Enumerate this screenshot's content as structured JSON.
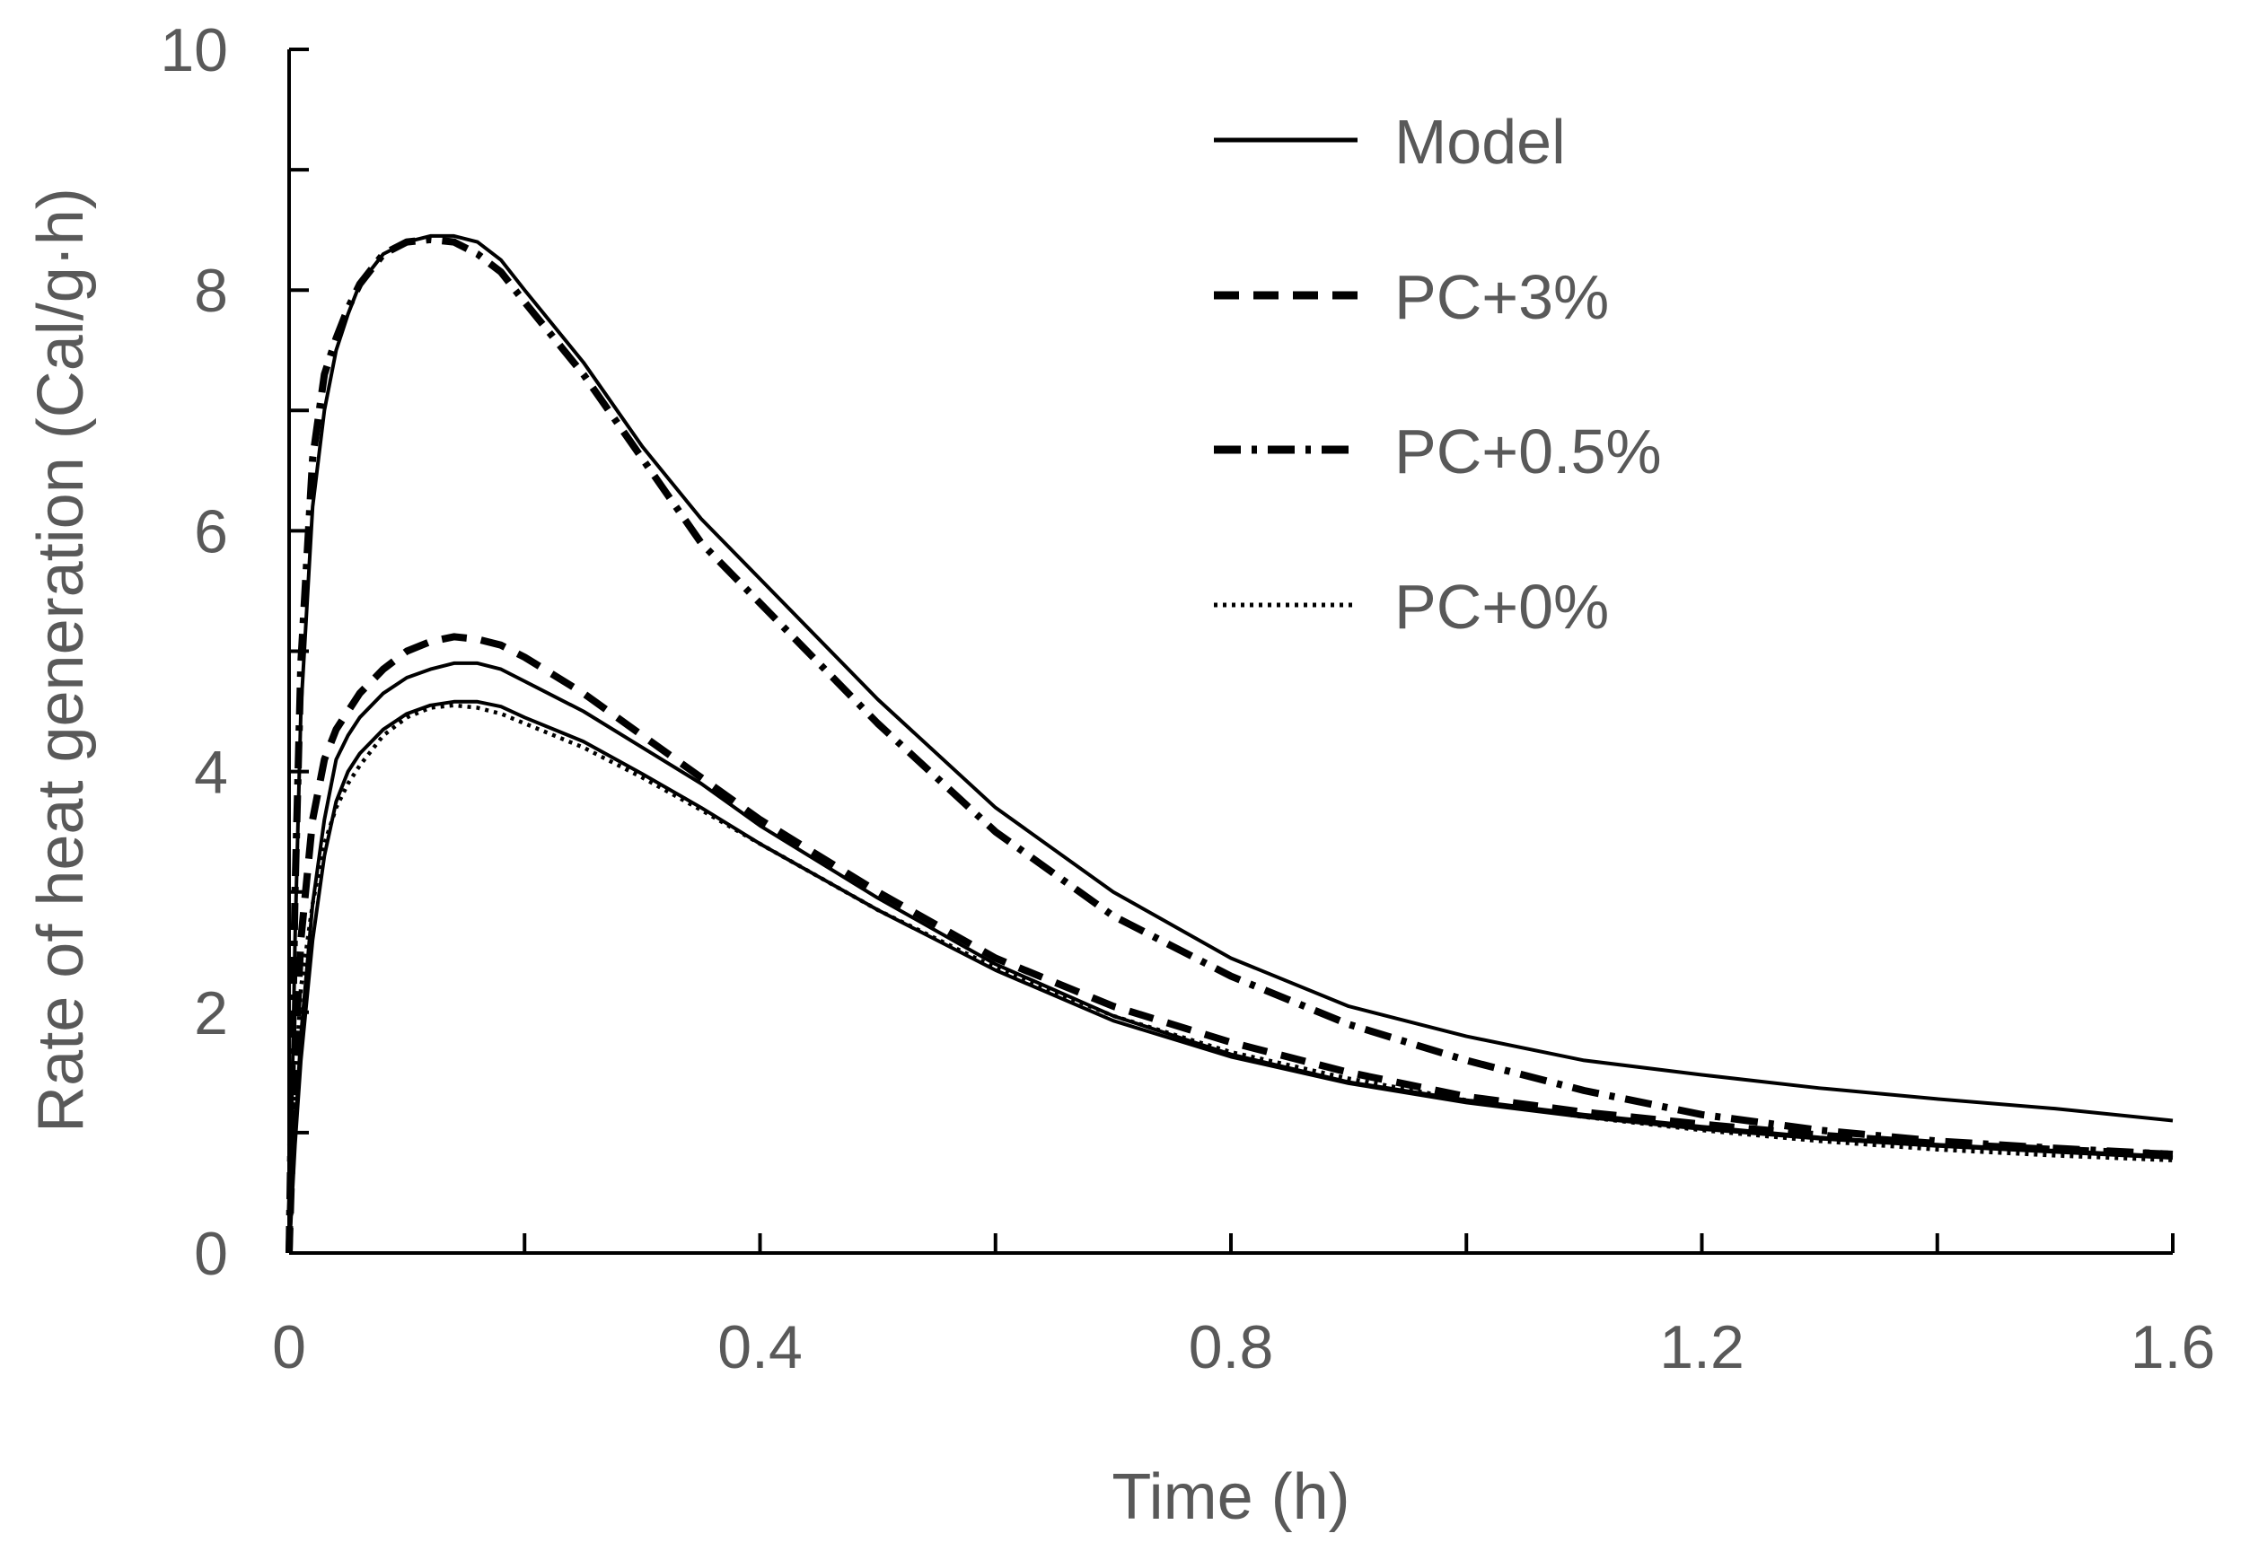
{
  "chart_data": {
    "type": "line",
    "title": "",
    "xlabel": "Time (h)",
    "ylabel": "Rate of heat generation (Cal/g·h)",
    "xlim": [
      0,
      1.6
    ],
    "ylim": [
      0,
      10
    ],
    "x_ticks": [
      0,
      0.4,
      0.8,
      1.2,
      1.6
    ],
    "x_tick_labels": [
      "0",
      "0.4",
      "0.8",
      "1.2",
      "1.6"
    ],
    "x_minor_step": 0.2,
    "y_ticks": [
      0,
      2,
      4,
      6,
      8,
      10
    ],
    "y_tick_labels": [
      "0",
      "2",
      "4",
      "6",
      "8",
      "10"
    ],
    "y_minor_step": 1,
    "grid": false,
    "legend_position": "top-right",
    "legend": [
      {
        "label": "Model",
        "style": "solid"
      },
      {
        "label": "PC+3%",
        "style": "dashed"
      },
      {
        "label": "PC+0.5%",
        "style": "dashdot"
      },
      {
        "label": "PC+0%",
        "style": "dotted"
      }
    ],
    "series": [
      {
        "name": "Model (PC+0.5%)",
        "style": "solid",
        "x": [
          0,
          0.005,
          0.01,
          0.02,
          0.03,
          0.04,
          0.05,
          0.06,
          0.08,
          0.1,
          0.12,
          0.14,
          0.16,
          0.18,
          0.2,
          0.25,
          0.3,
          0.35,
          0.4,
          0.5,
          0.6,
          0.7,
          0.8,
          0.9,
          1.0,
          1.1,
          1.2,
          1.3,
          1.4,
          1.5,
          1.6
        ],
        "y": [
          0,
          2.6,
          4.5,
          6.2,
          7.0,
          7.5,
          7.8,
          8.05,
          8.3,
          8.4,
          8.45,
          8.45,
          8.4,
          8.25,
          8.0,
          7.4,
          6.7,
          6.1,
          5.6,
          4.6,
          3.7,
          3.0,
          2.45,
          2.05,
          1.8,
          1.6,
          1.48,
          1.37,
          1.28,
          1.2,
          1.1
        ]
      },
      {
        "name": "PC+0.5%",
        "style": "dashdot",
        "x": [
          0,
          0.005,
          0.01,
          0.02,
          0.03,
          0.04,
          0.05,
          0.06,
          0.08,
          0.1,
          0.12,
          0.14,
          0.16,
          0.18,
          0.2,
          0.25,
          0.3,
          0.35,
          0.4,
          0.5,
          0.6,
          0.7,
          0.8,
          0.9,
          1.0,
          1.1,
          1.2,
          1.3,
          1.4,
          1.5,
          1.6
        ],
        "y": [
          0,
          3.0,
          4.9,
          6.6,
          7.3,
          7.6,
          7.85,
          8.05,
          8.3,
          8.4,
          8.42,
          8.4,
          8.3,
          8.15,
          7.9,
          7.3,
          6.6,
          5.9,
          5.4,
          4.4,
          3.5,
          2.8,
          2.3,
          1.9,
          1.6,
          1.35,
          1.15,
          1.02,
          0.93,
          0.87,
          0.82
        ]
      },
      {
        "name": "Model (PC+3%)",
        "style": "solid",
        "x": [
          0,
          0.005,
          0.01,
          0.02,
          0.03,
          0.04,
          0.05,
          0.06,
          0.08,
          0.1,
          0.12,
          0.14,
          0.16,
          0.18,
          0.2,
          0.25,
          0.3,
          0.35,
          0.4,
          0.5,
          0.6,
          0.7,
          0.8,
          0.9,
          1.0,
          1.1,
          1.2,
          1.3,
          1.4,
          1.5,
          1.6
        ],
        "y": [
          0,
          1.0,
          1.8,
          2.9,
          3.6,
          4.1,
          4.3,
          4.45,
          4.65,
          4.78,
          4.85,
          4.9,
          4.9,
          4.85,
          4.75,
          4.5,
          4.2,
          3.9,
          3.55,
          2.95,
          2.4,
          1.97,
          1.65,
          1.42,
          1.27,
          1.15,
          1.05,
          0.96,
          0.9,
          0.85,
          0.8
        ]
      },
      {
        "name": "PC+3%",
        "style": "dashed",
        "x": [
          0,
          0.005,
          0.01,
          0.02,
          0.03,
          0.04,
          0.05,
          0.06,
          0.08,
          0.1,
          0.12,
          0.14,
          0.16,
          0.18,
          0.2,
          0.25,
          0.3,
          0.35,
          0.4,
          0.5,
          0.6,
          0.7,
          0.8,
          0.9,
          1.0,
          1.1,
          1.2,
          1.3,
          1.4,
          1.5,
          1.6
        ],
        "y": [
          0,
          1.6,
          2.6,
          3.6,
          4.1,
          4.35,
          4.5,
          4.65,
          4.85,
          5.0,
          5.08,
          5.12,
          5.1,
          5.05,
          4.95,
          4.65,
          4.3,
          3.95,
          3.6,
          3.0,
          2.45,
          2.05,
          1.75,
          1.5,
          1.3,
          1.17,
          1.07,
          0.98,
          0.91,
          0.86,
          0.82
        ]
      },
      {
        "name": "Model (PC+0%)",
        "style": "solid",
        "x": [
          0,
          0.005,
          0.01,
          0.02,
          0.03,
          0.04,
          0.05,
          0.06,
          0.08,
          0.1,
          0.12,
          0.14,
          0.16,
          0.18,
          0.2,
          0.25,
          0.3,
          0.35,
          0.4,
          0.5,
          0.6,
          0.7,
          0.8,
          0.9,
          1.0,
          1.1,
          1.2,
          1.3,
          1.4,
          1.5,
          1.6
        ],
        "y": [
          0,
          0.9,
          1.6,
          2.6,
          3.3,
          3.75,
          4.0,
          4.15,
          4.35,
          4.48,
          4.55,
          4.58,
          4.58,
          4.54,
          4.45,
          4.25,
          3.98,
          3.7,
          3.4,
          2.85,
          2.35,
          1.93,
          1.63,
          1.41,
          1.25,
          1.13,
          1.03,
          0.95,
          0.89,
          0.84,
          0.79
        ]
      },
      {
        "name": "PC+0%",
        "style": "dotted",
        "x": [
          0,
          0.005,
          0.01,
          0.02,
          0.03,
          0.04,
          0.05,
          0.06,
          0.08,
          0.1,
          0.12,
          0.14,
          0.16,
          0.18,
          0.2,
          0.25,
          0.3,
          0.35,
          0.4,
          0.5,
          0.6,
          0.7,
          0.8,
          0.9,
          1.0,
          1.1,
          1.2,
          1.3,
          1.4,
          1.5,
          1.6
        ],
        "y": [
          0,
          1.4,
          2.2,
          2.9,
          3.4,
          3.7,
          3.9,
          4.05,
          4.3,
          4.45,
          4.53,
          4.55,
          4.53,
          4.48,
          4.4,
          4.2,
          3.95,
          3.68,
          3.4,
          2.85,
          2.37,
          1.97,
          1.67,
          1.45,
          1.27,
          1.13,
          1.02,
          0.93,
          0.86,
          0.81,
          0.77
        ]
      }
    ]
  }
}
